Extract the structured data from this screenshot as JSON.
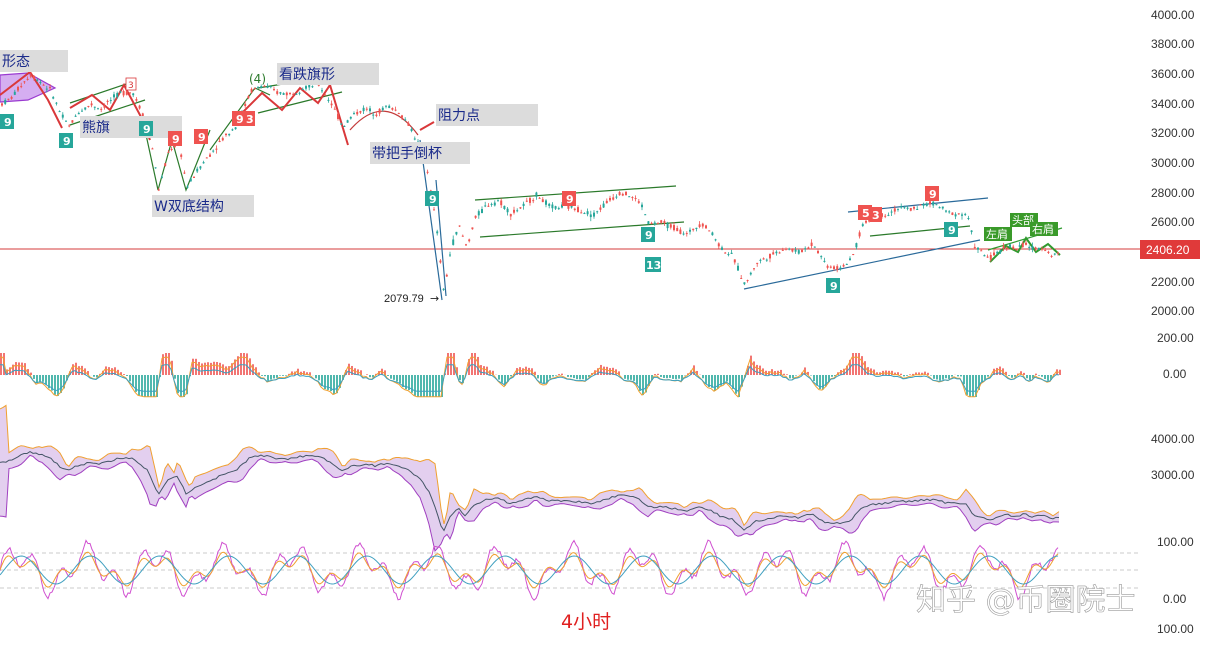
{
  "chart_data": {
    "type": "candlestick",
    "timeframe_label": "4小时",
    "watermark": "知乎 @币圈院士",
    "current_price": "2406.20",
    "low_marker": "2079.79",
    "price_axis": {
      "ticks": [
        "4000.00",
        "3800.00",
        "3600.00",
        "3400.00",
        "3200.00",
        "3000.00",
        "2800.00",
        "2600.00",
        "2400.00",
        "2200.00",
        "2000.00"
      ],
      "range": [
        2000,
        4000
      ]
    },
    "macd_axis": {
      "ticks": [
        "200.00",
        "0.00"
      ]
    },
    "ma_axis": {
      "ticks": [
        "4000.00",
        "3000.00"
      ]
    },
    "kdj_axis": {
      "ticks": [
        "100.00",
        "0.00"
      ]
    },
    "volume_axis": {
      "ticks": [
        "100.00"
      ]
    },
    "annotations": {
      "pattern_top_left": "形态",
      "bear_flag": "熊旗",
      "w_bottom": "W双底结构",
      "wave_four": "(4)",
      "bear_flag_pattern": "看跌旗形",
      "resistance": "阻力点",
      "cup_handle": "带把手倒杯",
      "left_shoulder": "左肩",
      "head": "头部",
      "right_shoulder": "右肩"
    },
    "td_markers": [
      "9",
      "9",
      "9",
      "9",
      "9",
      "9",
      "3",
      "3",
      "9",
      "9",
      "9",
      "13",
      "9",
      "5",
      "3",
      "9",
      "9"
    ],
    "price_path": [
      [
        0,
        3390
      ],
      [
        10,
        3430
      ],
      [
        20,
        3520
      ],
      [
        30,
        3590
      ],
      [
        40,
        3540
      ],
      [
        50,
        3480
      ],
      [
        60,
        3320
      ],
      [
        68,
        3240
      ],
      [
        78,
        3340
      ],
      [
        90,
        3390
      ],
      [
        100,
        3360
      ],
      [
        110,
        3420
      ],
      [
        120,
        3470
      ],
      [
        132,
        3470
      ],
      [
        140,
        3350
      ],
      [
        148,
        3240
      ],
      [
        158,
        2810
      ],
      [
        168,
        3080
      ],
      [
        178,
        3130
      ],
      [
        186,
        2830
      ],
      [
        198,
        2960
      ],
      [
        210,
        3060
      ],
      [
        222,
        3160
      ],
      [
        236,
        3250
      ],
      [
        250,
        3480
      ],
      [
        262,
        3520
      ],
      [
        276,
        3470
      ],
      [
        290,
        3460
      ],
      [
        304,
        3510
      ],
      [
        318,
        3520
      ],
      [
        330,
        3400
      ],
      [
        342,
        3240
      ],
      [
        352,
        3320
      ],
      [
        364,
        3360
      ],
      [
        376,
        3330
      ],
      [
        386,
        3380
      ],
      [
        398,
        3340
      ],
      [
        410,
        3230
      ],
      [
        420,
        3080
      ],
      [
        428,
        2900
      ],
      [
        436,
        2530
      ],
      [
        443,
        2110
      ],
      [
        450,
        2420
      ],
      [
        458,
        2570
      ],
      [
        466,
        2420
      ],
      [
        474,
        2620
      ],
      [
        486,
        2710
      ],
      [
        498,
        2740
      ],
      [
        510,
        2650
      ],
      [
        522,
        2700
      ],
      [
        536,
        2780
      ],
      [
        550,
        2690
      ],
      [
        564,
        2700
      ],
      [
        578,
        2680
      ],
      [
        592,
        2640
      ],
      [
        606,
        2730
      ],
      [
        620,
        2800
      ],
      [
        632,
        2760
      ],
      [
        640,
        2720
      ],
      [
        648,
        2580
      ],
      [
        660,
        2590
      ],
      [
        672,
        2560
      ],
      [
        686,
        2510
      ],
      [
        700,
        2590
      ],
      [
        710,
        2530
      ],
      [
        720,
        2420
      ],
      [
        732,
        2360
      ],
      [
        744,
        2170
      ],
      [
        756,
        2320
      ],
      [
        770,
        2370
      ],
      [
        784,
        2420
      ],
      [
        798,
        2390
      ],
      [
        812,
        2450
      ],
      [
        826,
        2300
      ],
      [
        836,
        2280
      ],
      [
        850,
        2330
      ],
      [
        862,
        2580
      ],
      [
        874,
        2630
      ],
      [
        886,
        2650
      ],
      [
        898,
        2690
      ],
      [
        910,
        2680
      ],
      [
        922,
        2710
      ],
      [
        934,
        2720
      ],
      [
        946,
        2660
      ],
      [
        958,
        2650
      ],
      [
        966,
        2650
      ],
      [
        974,
        2430
      ],
      [
        980,
        2390
      ],
      [
        988,
        2350
      ],
      [
        996,
        2380
      ],
      [
        1006,
        2440
      ],
      [
        1016,
        2410
      ],
      [
        1024,
        2450
      ],
      [
        1034,
        2400
      ],
      [
        1042,
        2430
      ],
      [
        1052,
        2360
      ],
      [
        1060,
        2410
      ]
    ]
  }
}
